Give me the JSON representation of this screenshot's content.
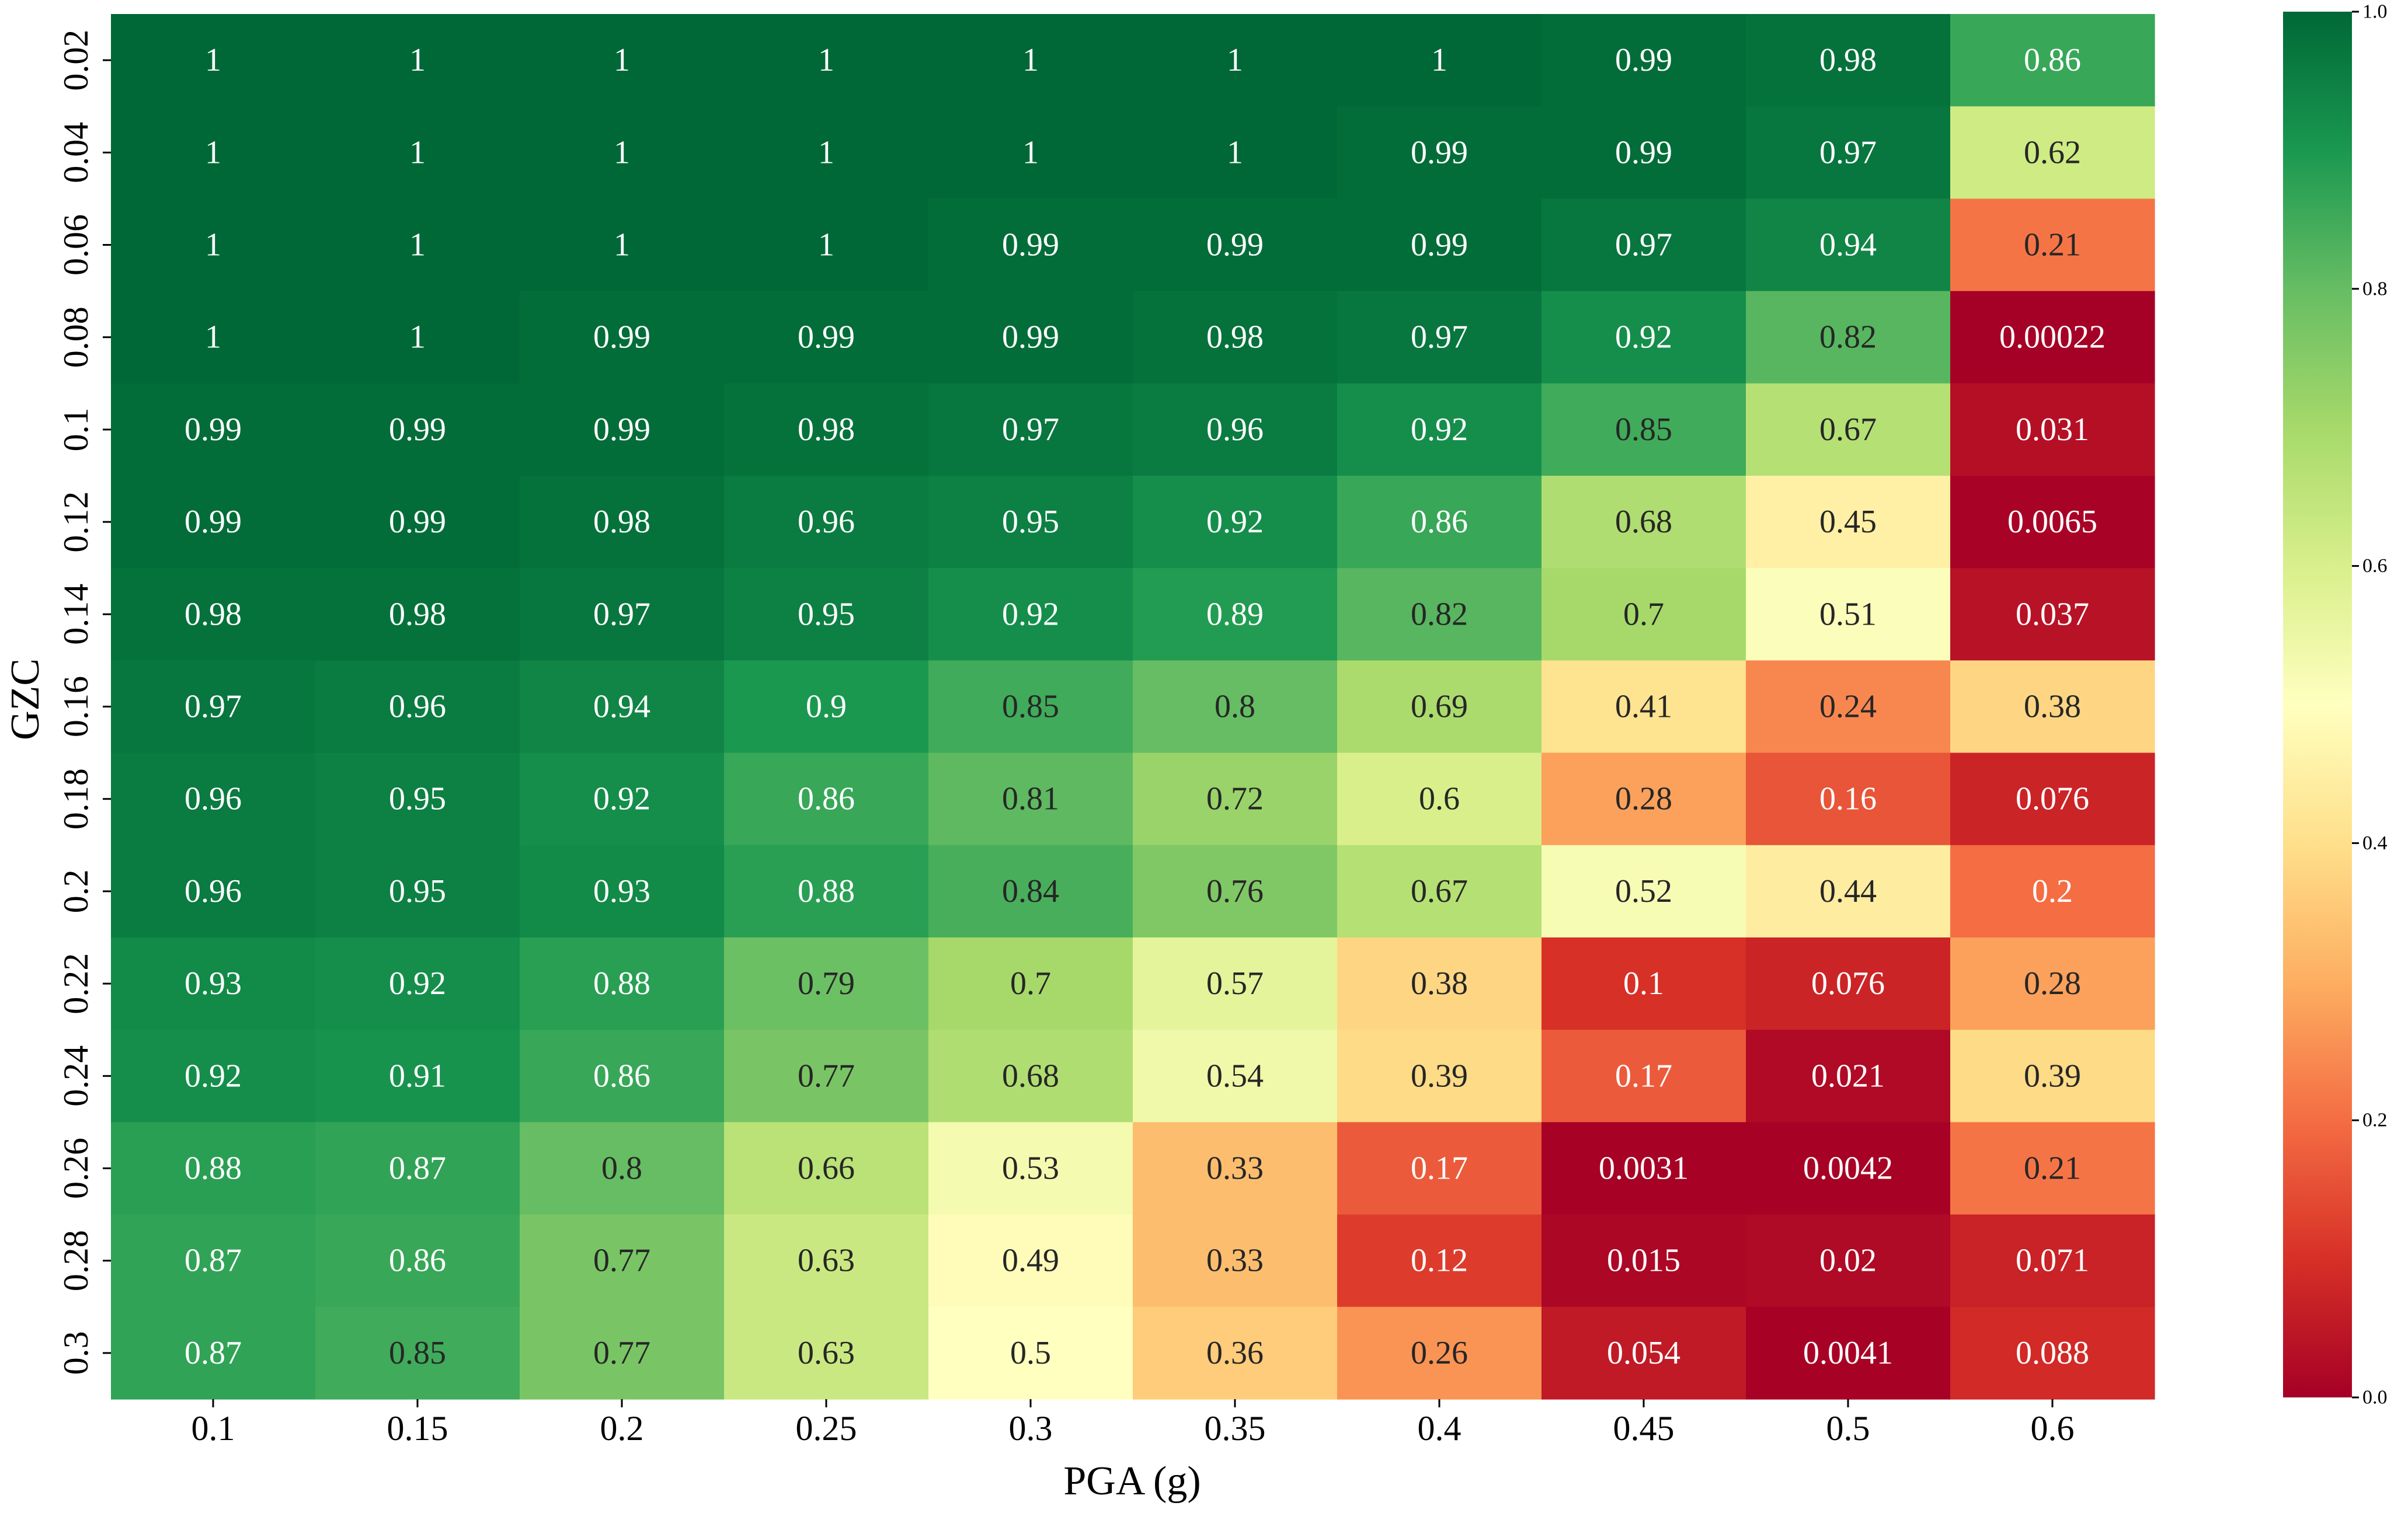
{
  "chart_data": {
    "type": "heatmap",
    "title": "",
    "xlabel": "PGA (g)",
    "ylabel": "GZC",
    "x_categories": [
      "0.1",
      "0.15",
      "0.2",
      "0.25",
      "0.3",
      "0.35",
      "0.4",
      "0.45",
      "0.5",
      "0.6"
    ],
    "y_categories": [
      "0.02",
      "0.04",
      "0.06",
      "0.08",
      "0.1",
      "0.12",
      "0.14",
      "0.16",
      "0.18",
      "0.2",
      "0.22",
      "0.24",
      "0.26",
      "0.28",
      "0.3"
    ],
    "values": [
      [
        1,
        1,
        1,
        1,
        1,
        1,
        1,
        0.99,
        0.98,
        0.86
      ],
      [
        1,
        1,
        1,
        1,
        1,
        1,
        0.99,
        0.99,
        0.97,
        0.62
      ],
      [
        1,
        1,
        1,
        1,
        0.99,
        0.99,
        0.99,
        0.97,
        0.94,
        0.21
      ],
      [
        1,
        1,
        0.99,
        0.99,
        0.99,
        0.98,
        0.97,
        0.92,
        0.82,
        0.00022
      ],
      [
        0.99,
        0.99,
        0.99,
        0.98,
        0.97,
        0.96,
        0.92,
        0.85,
        0.67,
        0.031
      ],
      [
        0.99,
        0.99,
        0.98,
        0.96,
        0.95,
        0.92,
        0.86,
        0.68,
        0.45,
        0.0065
      ],
      [
        0.98,
        0.98,
        0.97,
        0.95,
        0.92,
        0.89,
        0.82,
        0.7,
        0.51,
        0.037
      ],
      [
        0.97,
        0.96,
        0.94,
        0.9,
        0.85,
        0.8,
        0.69,
        0.41,
        0.24,
        0.38
      ],
      [
        0.96,
        0.95,
        0.92,
        0.86,
        0.81,
        0.72,
        0.6,
        0.28,
        0.16,
        0.076
      ],
      [
        0.96,
        0.95,
        0.93,
        0.88,
        0.84,
        0.76,
        0.67,
        0.52,
        0.44,
        0.2
      ],
      [
        0.93,
        0.92,
        0.88,
        0.79,
        0.7,
        0.57,
        0.38,
        0.1,
        0.076,
        0.28
      ],
      [
        0.92,
        0.91,
        0.86,
        0.77,
        0.68,
        0.54,
        0.39,
        0.17,
        0.021,
        0.39
      ],
      [
        0.88,
        0.87,
        0.8,
        0.66,
        0.53,
        0.33,
        0.17,
        0.0031,
        0.0042,
        0.21
      ],
      [
        0.87,
        0.86,
        0.77,
        0.63,
        0.49,
        0.33,
        0.12,
        0.015,
        0.02,
        0.071
      ],
      [
        0.87,
        0.85,
        0.77,
        0.63,
        0.5,
        0.36,
        0.26,
        0.054,
        0.0041,
        0.088
      ]
    ],
    "labels": [
      [
        "1",
        "1",
        "1",
        "1",
        "1",
        "1",
        "1",
        "0.99",
        "0.98",
        "0.86"
      ],
      [
        "1",
        "1",
        "1",
        "1",
        "1",
        "1",
        "0.99",
        "0.99",
        "0.97",
        "0.62"
      ],
      [
        "1",
        "1",
        "1",
        "1",
        "0.99",
        "0.99",
        "0.99",
        "0.97",
        "0.94",
        "0.21"
      ],
      [
        "1",
        "1",
        "0.99",
        "0.99",
        "0.99",
        "0.98",
        "0.97",
        "0.92",
        "0.82",
        "0.00022"
      ],
      [
        "0.99",
        "0.99",
        "0.99",
        "0.98",
        "0.97",
        "0.96",
        "0.92",
        "0.85",
        "0.67",
        "0.031"
      ],
      [
        "0.99",
        "0.99",
        "0.98",
        "0.96",
        "0.95",
        "0.92",
        "0.86",
        "0.68",
        "0.45",
        "0.0065"
      ],
      [
        "0.98",
        "0.98",
        "0.97",
        "0.95",
        "0.92",
        "0.89",
        "0.82",
        "0.7",
        "0.51",
        "0.037"
      ],
      [
        "0.97",
        "0.96",
        "0.94",
        "0.9",
        "0.85",
        "0.8",
        "0.69",
        "0.41",
        "0.24",
        "0.38"
      ],
      [
        "0.96",
        "0.95",
        "0.92",
        "0.86",
        "0.81",
        "0.72",
        "0.6",
        "0.28",
        "0.16",
        "0.076"
      ],
      [
        "0.96",
        "0.95",
        "0.93",
        "0.88",
        "0.84",
        "0.76",
        "0.67",
        "0.52",
        "0.44",
        "0.2"
      ],
      [
        "0.93",
        "0.92",
        "0.88",
        "0.79",
        "0.7",
        "0.57",
        "0.38",
        "0.1",
        "0.076",
        "0.28"
      ],
      [
        "0.92",
        "0.91",
        "0.86",
        "0.77",
        "0.68",
        "0.54",
        "0.39",
        "0.17",
        "0.021",
        "0.39"
      ],
      [
        "0.88",
        "0.87",
        "0.8",
        "0.66",
        "0.53",
        "0.33",
        "0.17",
        "0.0031",
        "0.0042",
        "0.21"
      ],
      [
        "0.87",
        "0.86",
        "0.77",
        "0.63",
        "0.49",
        "0.33",
        "0.12",
        "0.015",
        "0.02",
        "0.071"
      ],
      [
        "0.87",
        "0.85",
        "0.77",
        "0.63",
        "0.5",
        "0.36",
        "0.26",
        "0.054",
        "0.0041",
        "0.088"
      ]
    ],
    "colormap": "RdYlGn",
    "colormap_stops": [
      "#a50026",
      "#d73027",
      "#f46d43",
      "#fdae61",
      "#fee08b",
      "#ffffbf",
      "#d9ef8b",
      "#a6d96a",
      "#66bd63",
      "#1a9850",
      "#006837"
    ],
    "vmin": 0.0,
    "vmax": 1.0,
    "colorbar_ticks": [
      "0.0",
      "0.2",
      "0.4",
      "0.6",
      "0.8",
      "1.0"
    ],
    "colorbar_tick_values": [
      0.0,
      0.2,
      0.4,
      0.6,
      0.8,
      1.0
    ],
    "grid": false,
    "legend_position": "right"
  }
}
